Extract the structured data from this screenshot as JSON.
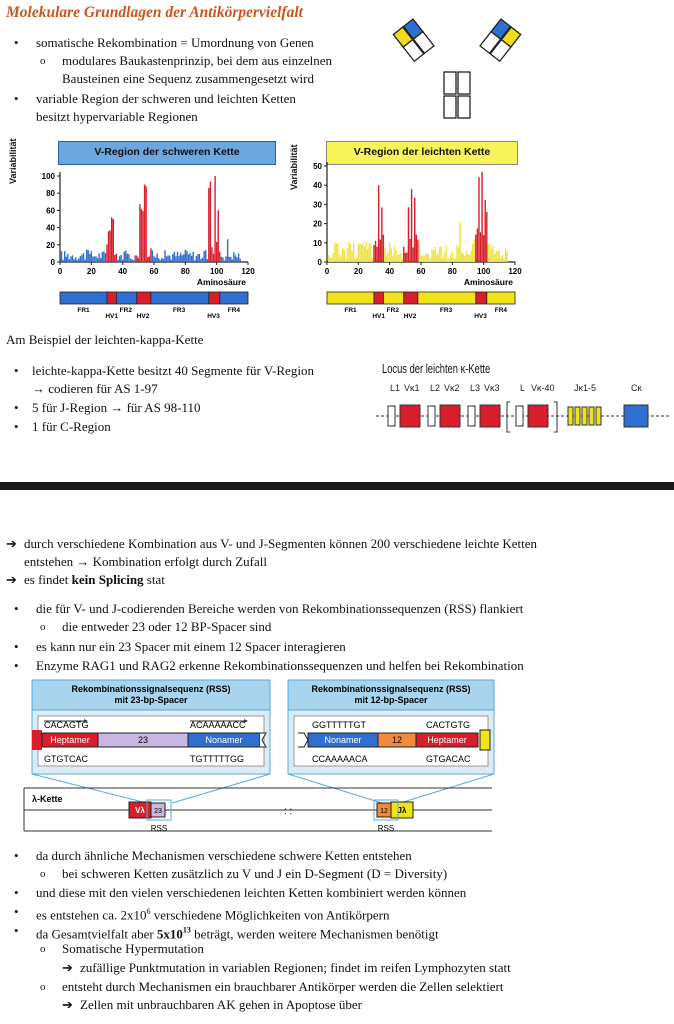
{
  "title": "Molekulare Grundlagen der Antikörpervielfalt",
  "intro_bullets": [
    {
      "level": 1,
      "text": "somatische Rekombination = Umordnung von Genen"
    },
    {
      "level": 2,
      "text": "modulares Baukastenprinzip, bei dem aus einzelnen"
    },
    {
      "level": 2,
      "text": "Bausteinen eine Sequenz zusammengesetzt wird",
      "cont": true
    },
    {
      "level": 1,
      "text": "variable Region der schweren und leichten Ketten"
    },
    {
      "level": 1,
      "text": "besitzt hypervariable Regionen",
      "cont": true
    }
  ],
  "antibody_colors": {
    "heavy_v": "#2f6fd1",
    "light_v": "#f1dc1a",
    "constant": "#ffffff",
    "outline": "#222222"
  },
  "charts": {
    "heavy": {
      "header": "V-Region der schweren Kette",
      "header_bg": "#6da7df",
      "ylabel": "Variabilität",
      "xlabel": "Aminosäure",
      "yticks": [
        "0",
        "20",
        "40",
        "60",
        "80",
        "100"
      ],
      "xticks": [
        "0",
        "20",
        "40",
        "60",
        "80",
        "100",
        "120"
      ],
      "region_labels": [
        "FR1",
        "HV1",
        "FR2",
        "HV2",
        "FR3",
        "HV3",
        "FR4"
      ],
      "peaks": {
        "HV1": 52,
        "HV2": 90,
        "HV3": 100
      }
    },
    "light": {
      "header": "V-Region der leichten Kette",
      "header_bg": "#f7f45a",
      "ylabel": "Variabilität",
      "xlabel": "Aminosäure",
      "yticks": [
        "0",
        "10",
        "20",
        "30",
        "40",
        "50"
      ],
      "xticks": [
        "0",
        "20",
        "40",
        "60",
        "80",
        "100",
        "120"
      ],
      "region_labels": [
        "FR1",
        "HV1",
        "FR2",
        "HV2",
        "FR3",
        "HV3",
        "FR4"
      ],
      "peaks": {
        "HV1": 40,
        "HV2": 38,
        "HV3": 47
      }
    }
  },
  "example_heading": "Am Beispiel der leichten-kappa-Kette",
  "kappa_bullets": [
    {
      "level": 1,
      "text": "leichte-kappa-Kette besitzt 40 Segmente für V-Region"
    },
    {
      "level": 0,
      "text": "→ codieren für AS 1-97"
    },
    {
      "level": 1,
      "text": "5 für J-Region → für AS 98-110"
    },
    {
      "level": 1,
      "text": "1 für C-Region"
    }
  ],
  "locus": {
    "title": "Locus der leichten κ-Kette",
    "labels": [
      "L1",
      "Vκ1",
      "L2",
      "Vκ2",
      "L3",
      "Vκ3",
      "L",
      "Vκ-40",
      "Jκ1-5",
      "Cκ"
    ]
  },
  "lower_lines": [
    {
      "kind": "arrow",
      "text": "durch verschiedene Kombination aus V- und J-Segmenten können 200 verschiedene leichte Ketten"
    },
    {
      "kind": "cont",
      "text": "entstehen → Kombination erfolgt durch Zufall"
    },
    {
      "kind": "arrow",
      "text_pre": "es findet ",
      "text_bold": "kein Splicing",
      "text_post": " stat"
    },
    {
      "kind": "b1",
      "text": "die für V- und J-codierenden Bereiche werden von Rekombinationssequenzen (RSS) flankiert"
    },
    {
      "kind": "b2",
      "text": "die entweder 23 oder 12 BP-Spacer sind"
    },
    {
      "kind": "b1",
      "text": "es kann nur ein 23 Spacer mit einem 12 Spacer interagieren"
    },
    {
      "kind": "b1",
      "text": "Enzyme RAG1 und RAG2 erkenne Rekombinationssequenzen und helfen bei Rekombination"
    }
  ],
  "rss": {
    "left": {
      "title1": "Rekombinationssignalsequenz (RSS)",
      "title2": "mit 23-bp-Spacer",
      "top_left": "CACAGTG",
      "top_right": "ACAAAAACC",
      "bottom_left": "GTGTCAC",
      "bottom_right": "TGTTTTTGG",
      "seg1": "Heptamer",
      "spacer": "23",
      "seg2": "Nonamer"
    },
    "right": {
      "title1": "Rekombinationssignalsequenz (RSS)",
      "title2": "mit 12-bp-Spacer",
      "top_left": "GGTTTTTGT",
      "top_right": "CACTGTG",
      "bottom_left": "CCAAAAACA",
      "bottom_right": "GTGACAC",
      "seg1": "Nonamer",
      "spacer": "12",
      "seg2": "Heptamer"
    },
    "chain_label": "λ-Kette",
    "v_label": "Vλ",
    "j_label": "Jλ",
    "spacer23": "23",
    "spacer12": "12",
    "rss_label": "RSS"
  },
  "final_bullets": [
    {
      "kind": "b1",
      "text": "da durch ähnliche Mechanismen verschiedene schwere Ketten entstehen"
    },
    {
      "kind": "b2",
      "text": "bei schweren Ketten zusätzlich zu V und J ein D-Segment (D = Diversity)"
    },
    {
      "kind": "b1",
      "text": "und diese mit den vielen verschiedenen leichten Ketten kombiniert werden können"
    },
    {
      "kind": "b1",
      "text_pre": "es entstehen ca. 2x10",
      "sup": "6",
      "text_post": " verschiedene Möglichkeiten von Antikörpern"
    },
    {
      "kind": "b1",
      "text_pre": "da Gesamtvielfalt aber ",
      "bold": "5x10",
      "bold_sup": "13",
      "text_post": " beträgt, werden weitere Mechanismen benötigt"
    },
    {
      "kind": "b2",
      "text": "Somatische Hypermutation"
    },
    {
      "kind": "arrow2",
      "text": "zufällige Punktmutation in variablen Regionen; findet im reifen Lymphozyten statt"
    },
    {
      "kind": "b2",
      "text": "entsteht durch Mechanismen ein brauchbarer Antikörper werden die Zellen selektiert"
    },
    {
      "kind": "arrow2",
      "text": "Zellen mit unbrauchbaren AK gehen in Apoptose über"
    }
  ]
}
